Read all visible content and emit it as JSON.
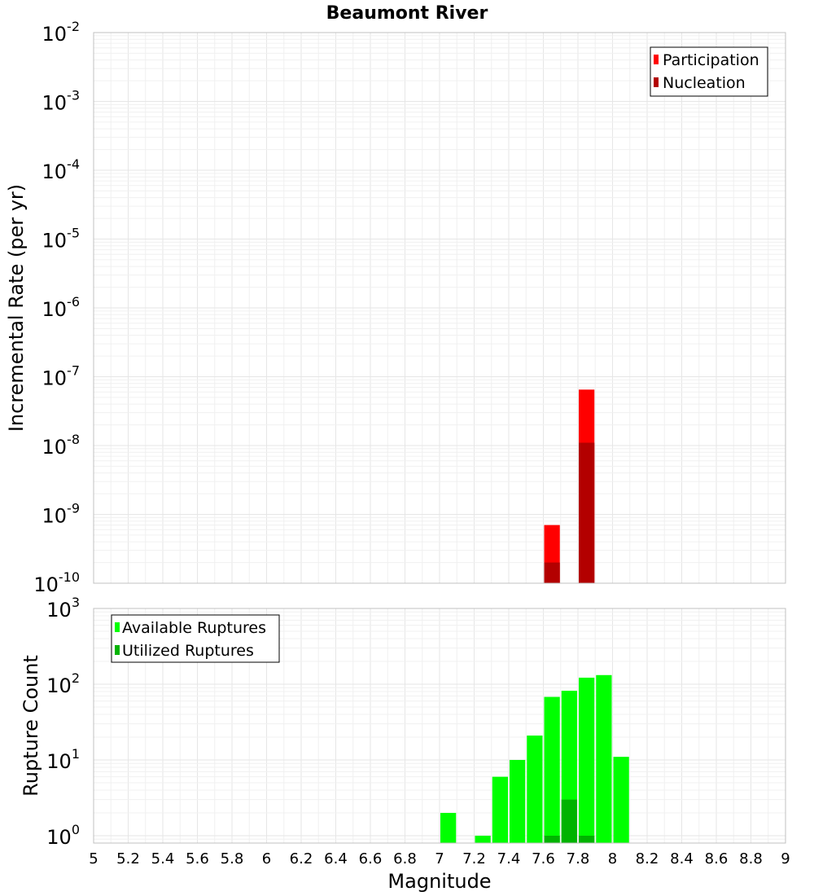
{
  "chart_data": [
    {
      "type": "bar",
      "title": "Beaumont River",
      "ylabel": "Incremental Rate (per yr)",
      "xlabel": "",
      "yscale": "log",
      "ylim": [
        1e-10,
        0.01
      ],
      "xlim": [
        5,
        9
      ],
      "grid": true,
      "legend_position": "top-right",
      "y_ticks": [
        {
          "base": "10",
          "exp": "-10"
        },
        {
          "base": "10",
          "exp": "-9"
        },
        {
          "base": "10",
          "exp": "-8"
        },
        {
          "base": "10",
          "exp": "-7"
        },
        {
          "base": "10",
          "exp": "-6"
        },
        {
          "base": "10",
          "exp": "-5"
        },
        {
          "base": "10",
          "exp": "-4"
        },
        {
          "base": "10",
          "exp": "-3"
        },
        {
          "base": "10",
          "exp": "-2"
        }
      ],
      "bin_width": 0.1,
      "series": [
        {
          "name": "Participation",
          "color": "#ff0000",
          "x": [
            7.65,
            7.85
          ],
          "values": [
            7e-10,
            6.5e-08
          ]
        },
        {
          "name": "Nucleation",
          "color": "#b30000",
          "x": [
            7.65,
            7.85
          ],
          "values": [
            2e-10,
            1.1e-08
          ]
        }
      ]
    },
    {
      "type": "bar",
      "title": "",
      "ylabel": "Rupture Count",
      "xlabel": "Magnitude",
      "yscale": "log",
      "ylim": [
        0.8,
        1000
      ],
      "xlim": [
        5,
        9
      ],
      "grid": true,
      "legend_position": "top-left",
      "y_ticks": [
        {
          "base": "10",
          "exp": "0",
          "value": 1
        },
        {
          "base": "10",
          "exp": "1",
          "value": 10
        },
        {
          "base": "10",
          "exp": "2",
          "value": 100
        },
        {
          "base": "10",
          "exp": "3",
          "value": 1000
        }
      ],
      "x_ticks": [
        "5",
        "5.2",
        "5.4",
        "5.6",
        "5.8",
        "6",
        "6.2",
        "6.4",
        "6.6",
        "6.8",
        "7",
        "7.2",
        "7.4",
        "7.6",
        "7.8",
        "8",
        "8.2",
        "8.4",
        "8.6",
        "8.8",
        "9"
      ],
      "bin_width": 0.1,
      "series": [
        {
          "name": "Available Ruptures",
          "color": "#00ff00",
          "x": [
            7.05,
            7.25,
            7.35,
            7.45,
            7.55,
            7.65,
            7.75,
            7.85,
            7.95,
            8.05
          ],
          "values": [
            2,
            1,
            6,
            10,
            21,
            68,
            82,
            122,
            132,
            11
          ]
        },
        {
          "name": "Utilized Ruptures",
          "color": "#00b300",
          "x": [
            7.65,
            7.75,
            7.85
          ],
          "values": [
            1,
            3,
            1
          ]
        }
      ]
    }
  ]
}
